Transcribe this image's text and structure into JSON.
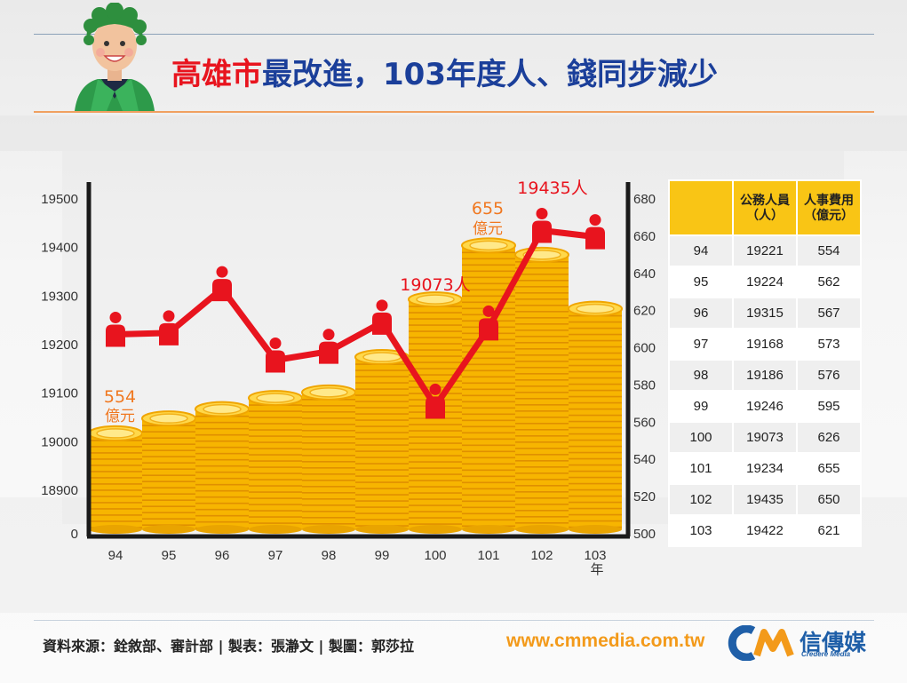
{
  "title": {
    "part1": "高雄市",
    "part2": "最改進，103年度人、錢同步減少"
  },
  "chart_data": {
    "type": "bar",
    "categories": [
      "94",
      "95",
      "96",
      "97",
      "98",
      "99",
      "100",
      "101",
      "102",
      "103"
    ],
    "x_unit": "年",
    "series": [
      {
        "name": "公務人員（人）",
        "type": "line",
        "axis": "left",
        "values": [
          19221,
          19224,
          19315,
          19168,
          19186,
          19246,
          19073,
          19234,
          19435,
          19422
        ],
        "color": "#e8141e"
      },
      {
        "name": "人事費用（億元）",
        "type": "bar",
        "axis": "right",
        "values": [
          554,
          562,
          567,
          573,
          576,
          595,
          626,
          655,
          650,
          621
        ],
        "color": "#f9b800"
      }
    ],
    "left_axis": {
      "ticks": [
        "0",
        "18900",
        "19000",
        "19100",
        "19200",
        "19300",
        "19400",
        "19500"
      ]
    },
    "right_axis": {
      "range": [
        500,
        680
      ],
      "ticks": [
        "500",
        "520",
        "540",
        "560",
        "580",
        "600",
        "620",
        "640",
        "660",
        "680"
      ]
    },
    "annotations": [
      {
        "value": "554",
        "unit": "億元",
        "color": "#f07820"
      },
      {
        "value": "655",
        "unit": "億元",
        "color": "#f07820"
      },
      {
        "text": "19073人",
        "color": "#e8141e"
      },
      {
        "text": "19435人",
        "color": "#e8141e"
      }
    ]
  },
  "table": {
    "headers": [
      "",
      "公務人員\n（人）",
      "人事費用\n（億元）"
    ],
    "rows": [
      [
        "94",
        "19221",
        "554"
      ],
      [
        "95",
        "19224",
        "562"
      ],
      [
        "96",
        "19315",
        "567"
      ],
      [
        "97",
        "19168",
        "573"
      ],
      [
        "98",
        "19186",
        "576"
      ],
      [
        "99",
        "19246",
        "595"
      ],
      [
        "100",
        "19073",
        "626"
      ],
      [
        "101",
        "19234",
        "655"
      ],
      [
        "102",
        "19435",
        "650"
      ],
      [
        "103",
        "19422",
        "621"
      ]
    ]
  },
  "footer": {
    "source": "資料來源：銓敘部、審計部 | 製表：張瀞文 | 製圖：郭莎拉",
    "website": "www.cmmedia.com.tw",
    "logo_name": "信傳媒",
    "logo_sub": "Credere Media"
  },
  "icons": {
    "avatar": "mayor-portrait-icon",
    "person": "person-icon",
    "coins": "coin-stack-icon",
    "logo": "cm-logo-icon"
  }
}
